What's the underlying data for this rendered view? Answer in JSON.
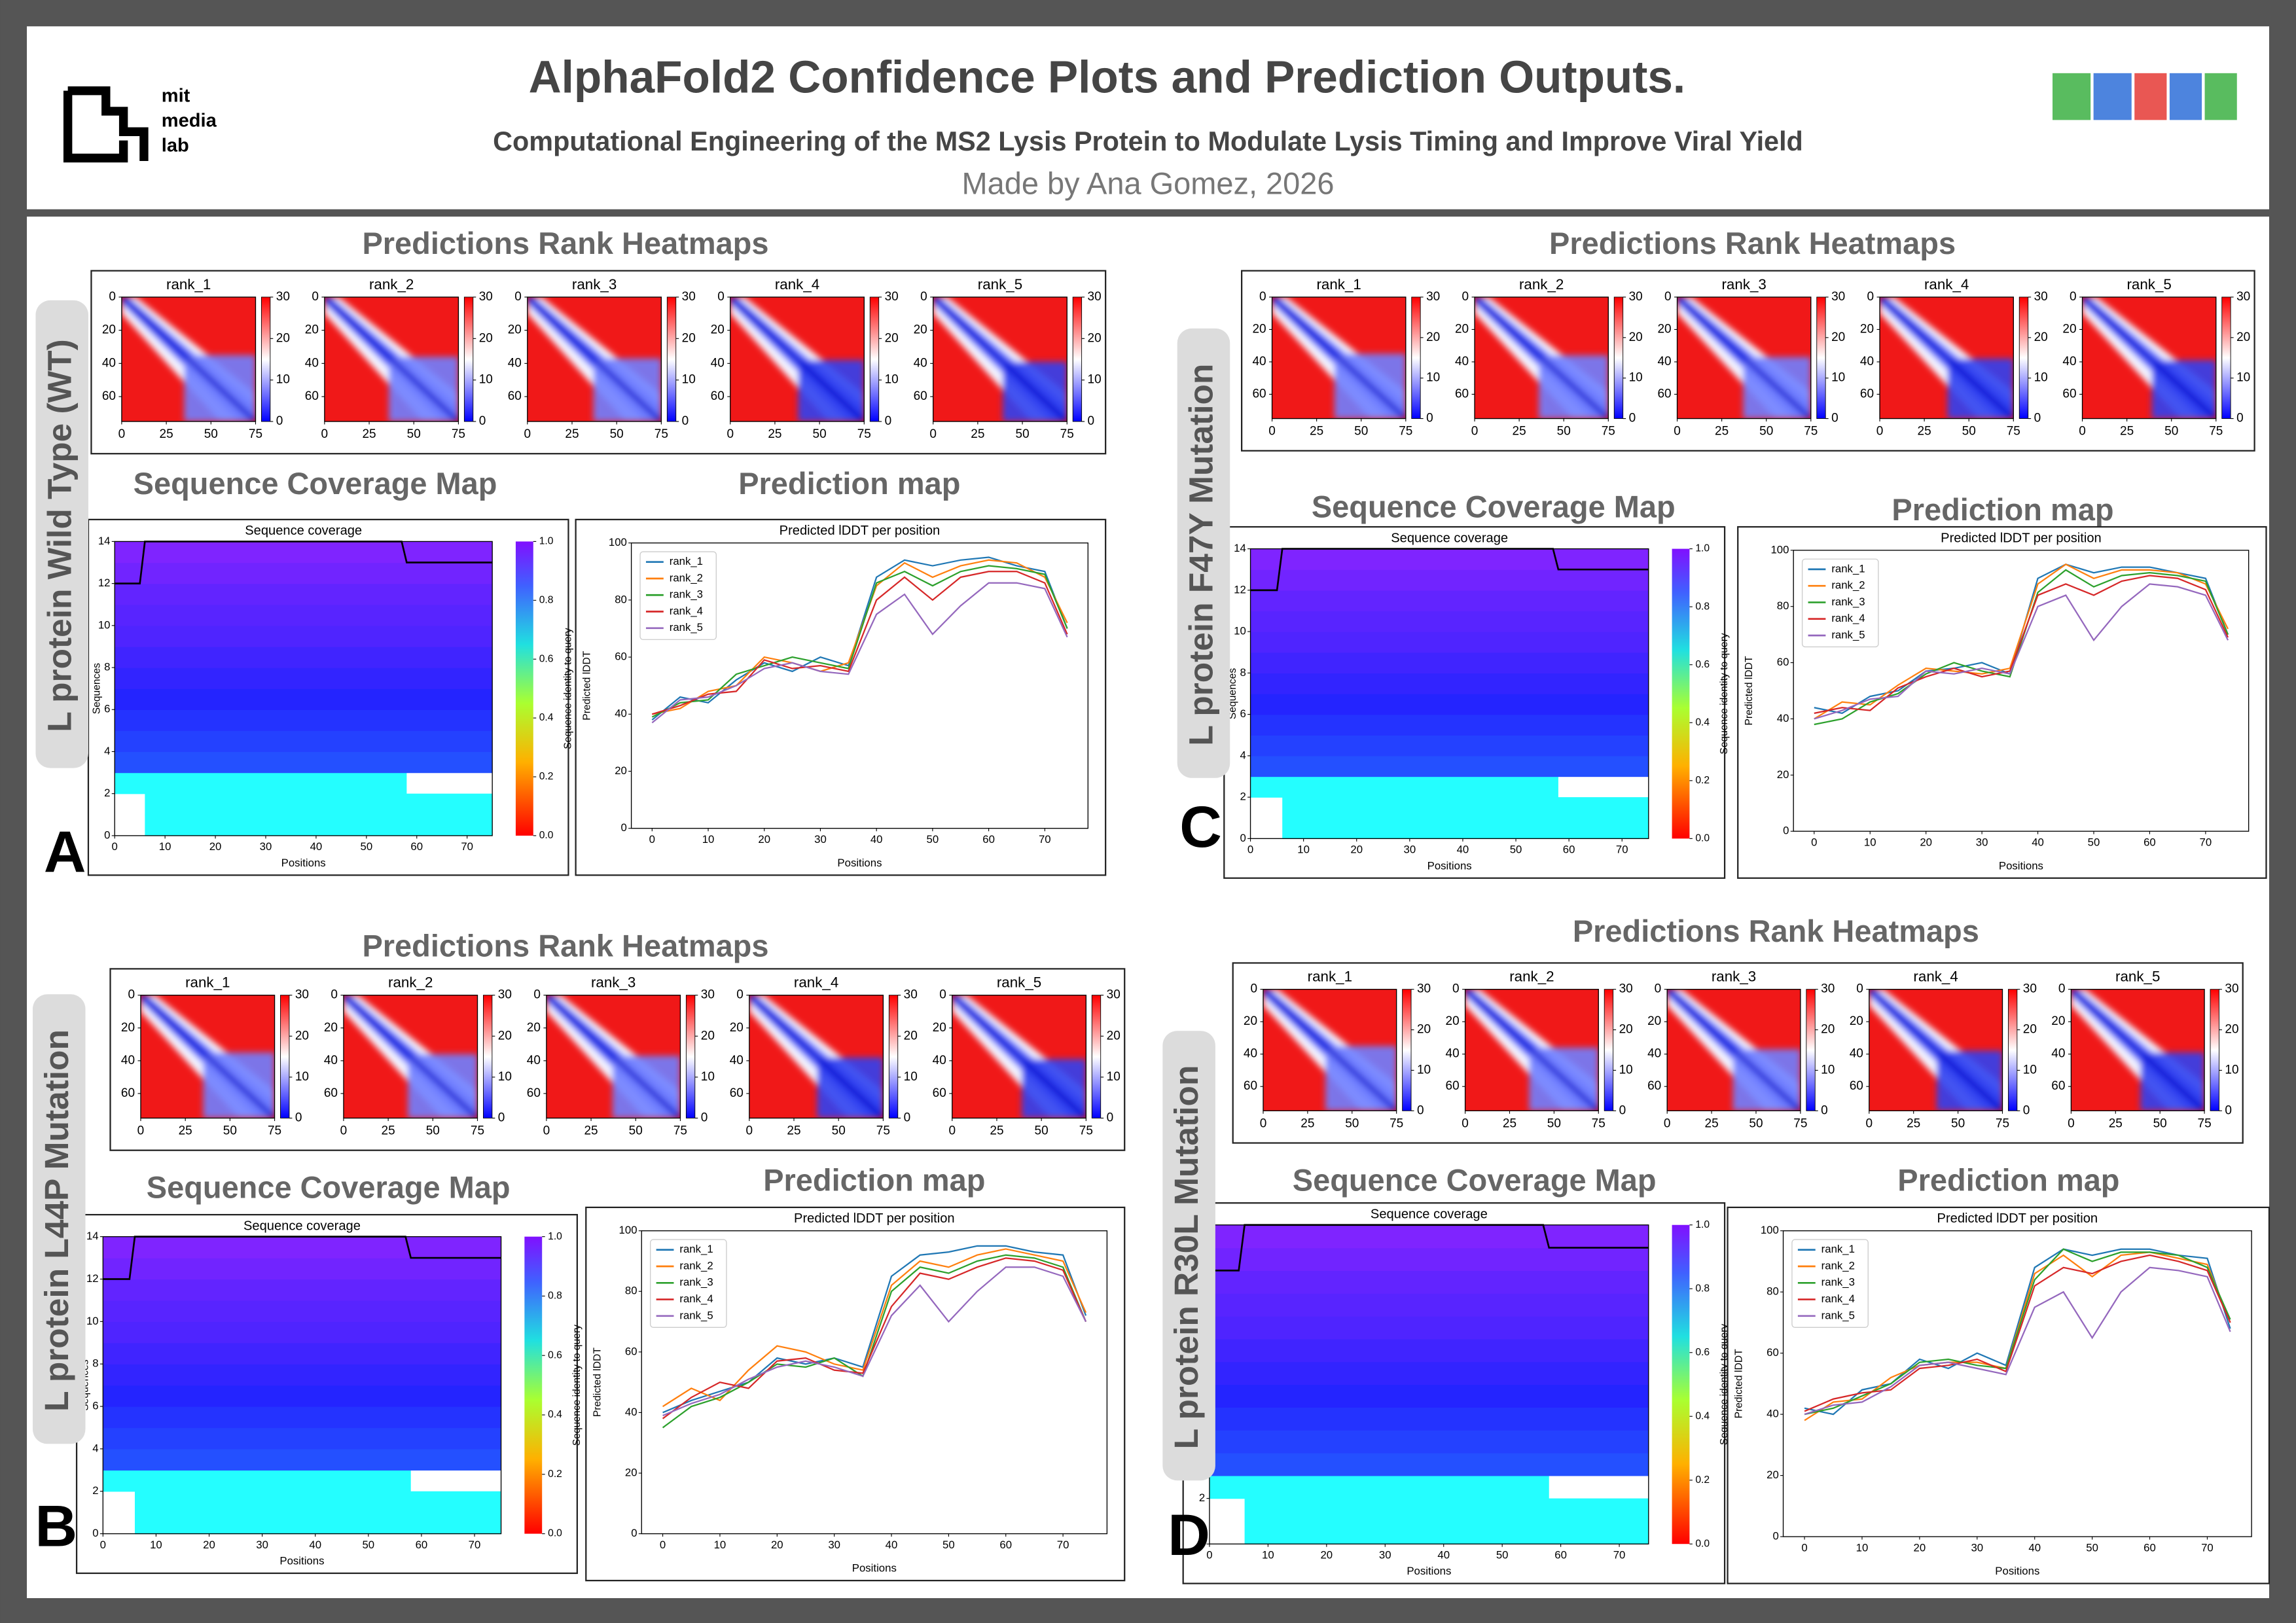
{
  "header": {
    "title": "AlphaFold2 Confidence Plots and Prediction Outputs.",
    "subtitle": "Computational Engineering of the MS2 Lysis Protein to Modulate Lysis Timing and Improve Viral Yield",
    "author": "Made by Ana Gomez, 2026",
    "logo": [
      "mit",
      "media",
      "lab"
    ]
  },
  "common": {
    "ranks": [
      "rank_1",
      "rank_2",
      "rank_3",
      "rank_4",
      "rank_5"
    ],
    "rank_colors": [
      "#1f77b4",
      "#ff7f0e",
      "#2ca02c",
      "#d62728",
      "#9467bd"
    ],
    "heatmap": {
      "xlim": [
        0,
        75
      ],
      "ylim": [
        0,
        75
      ],
      "xticks": [
        0,
        25,
        50,
        75
      ],
      "yticks": [
        0,
        20,
        40,
        60
      ],
      "clim": [
        0,
        30
      ],
      "cticks": [
        0,
        10,
        20,
        30
      ]
    },
    "coverage": {
      "title": "Sequence coverage",
      "xlabel": "Positions",
      "ylabel": "Sequences",
      "clabel": "Sequence identity to query",
      "xlim": [
        0,
        75
      ],
      "ylim": [
        0,
        14
      ],
      "xticks": [
        0,
        10,
        20,
        30,
        40,
        50,
        60,
        70
      ],
      "yticks": [
        0,
        2,
        4,
        6,
        8,
        10,
        12,
        14
      ],
      "clim": [
        0,
        1
      ],
      "cticks": [
        {
          "value": 0,
          "label": "0.0"
        },
        {
          "value": 0.2,
          "label": "0.2"
        },
        {
          "value": 0.4,
          "label": "0.4"
        },
        {
          "value": 0.6,
          "label": "0.6"
        },
        {
          "value": 0.8,
          "label": "0.8"
        },
        {
          "value": 1,
          "label": "1.0"
        }
      ],
      "rows": [
        {
          "start": 6,
          "end": 75,
          "identity": 0.68
        },
        {
          "start": 6,
          "end": 75,
          "identity": 0.68
        },
        {
          "start": 0,
          "end": 58,
          "identity": 0.68
        },
        {
          "start": 0,
          "end": 75,
          "identity": 0.86
        },
        {
          "start": 0,
          "end": 75,
          "identity": 0.875
        },
        {
          "start": 0,
          "end": 75,
          "identity": 0.89
        },
        {
          "start": 0,
          "end": 75,
          "identity": 0.905
        },
        {
          "start": 0,
          "end": 75,
          "identity": 0.92
        },
        {
          "start": 0,
          "end": 75,
          "identity": 0.935
        },
        {
          "start": 0,
          "end": 75,
          "identity": 0.95
        },
        {
          "start": 0,
          "end": 75,
          "identity": 0.96
        },
        {
          "start": 0,
          "end": 75,
          "identity": 0.97
        },
        {
          "start": 0,
          "end": 75,
          "identity": 0.985
        },
        {
          "start": 0,
          "end": 75,
          "identity": 1.0
        }
      ],
      "line": {
        "x": [
          0,
          5,
          6,
          57,
          58,
          75
        ],
        "y": [
          12,
          12,
          14,
          14,
          13,
          13
        ]
      }
    },
    "prediction": {
      "title": "Predicted lDDT per position",
      "xlabel": "Positions",
      "ylabel": "Predicted lDDT",
      "xlim": [
        -3.7,
        77.7
      ],
      "ylim": [
        0,
        100
      ],
      "xticks": [
        0,
        10,
        20,
        30,
        40,
        50,
        60,
        70
      ],
      "yticks": [
        0,
        20,
        40,
        60,
        80,
        100
      ],
      "x": [
        0,
        5,
        10,
        15,
        20,
        25,
        30,
        35,
        40,
        45,
        50,
        55,
        60,
        65,
        70,
        74
      ]
    }
  },
  "panels": [
    {
      "letter": "A",
      "label": "L protein Wild Type (WT)",
      "heatmap_title": "Predictions Rank Heatmaps",
      "coverage_title": "Sequence Coverage Map",
      "prediction_title": "Prediction map",
      "series": [
        [
          38,
          46,
          44,
          52,
          58,
          55,
          60,
          57,
          88,
          94,
          92,
          94,
          95,
          92,
          90,
          70
        ],
        [
          40,
          42,
          48,
          50,
          60,
          58,
          55,
          58,
          85,
          93,
          88,
          92,
          94,
          93,
          88,
          72
        ],
        [
          39,
          44,
          45,
          54,
          57,
          60,
          58,
          56,
          86,
          90,
          85,
          90,
          92,
          91,
          89,
          70
        ],
        [
          40,
          43,
          47,
          48,
          59,
          56,
          57,
          55,
          80,
          88,
          80,
          88,
          90,
          90,
          86,
          68
        ],
        [
          37,
          45,
          46,
          50,
          56,
          58,
          55,
          54,
          75,
          82,
          68,
          78,
          86,
          86,
          84,
          67
        ]
      ]
    },
    {
      "letter": "C",
      "label": "L protein F47Y Mutation",
      "heatmap_title": "Predictions Rank Heatmaps",
      "coverage_title": "Sequence Coverage Map",
      "prediction_title": "Prediction map",
      "series": [
        [
          44,
          42,
          48,
          50,
          57,
          58,
          60,
          56,
          90,
          95,
          92,
          94,
          94,
          92,
          90,
          70
        ],
        [
          40,
          46,
          45,
          52,
          58,
          57,
          56,
          58,
          88,
          95,
          90,
          93,
          93,
          92,
          88,
          72
        ],
        [
          38,
          40,
          46,
          49,
          56,
          60,
          57,
          55,
          85,
          93,
          87,
          91,
          92,
          91,
          89,
          70
        ],
        [
          42,
          44,
          43,
          51,
          55,
          58,
          55,
          57,
          84,
          88,
          84,
          89,
          91,
          90,
          86,
          69
        ],
        [
          40,
          43,
          47,
          48,
          57,
          56,
          58,
          56,
          80,
          84,
          68,
          80,
          88,
          87,
          84,
          68
        ]
      ]
    },
    {
      "letter": "B",
      "label": "L protein L44P Mutation",
      "heatmap_title": "Predictions Rank Heatmaps",
      "coverage_title": "Sequence Coverage Map",
      "prediction_title": "Prediction map",
      "series": [
        [
          40,
          44,
          47,
          50,
          58,
          56,
          58,
          55,
          85,
          92,
          93,
          95,
          95,
          93,
          92,
          72
        ],
        [
          42,
          48,
          44,
          54,
          62,
          60,
          56,
          54,
          82,
          90,
          88,
          92,
          94,
          92,
          90,
          73
        ],
        [
          35,
          42,
          45,
          50,
          56,
          55,
          58,
          52,
          80,
          88,
          86,
          90,
          92,
          91,
          88,
          70
        ],
        [
          38,
          45,
          50,
          48,
          57,
          58,
          54,
          53,
          75,
          86,
          84,
          88,
          91,
          90,
          87,
          70
        ],
        [
          39,
          43,
          46,
          51,
          55,
          57,
          55,
          52,
          72,
          82,
          70,
          80,
          88,
          88,
          85,
          70
        ]
      ]
    },
    {
      "letter": "D",
      "label": "L protein R30L Mutation",
      "heatmap_title": "Predictions Rank Heatmaps",
      "coverage_title": "Sequence Coverage Map",
      "prediction_title": "Prediction map",
      "series": [
        [
          42,
          40,
          48,
          50,
          58,
          55,
          60,
          56,
          88,
          94,
          92,
          94,
          94,
          92,
          91,
          68
        ],
        [
          38,
          44,
          45,
          52,
          56,
          57,
          57,
          55,
          86,
          92,
          85,
          92,
          93,
          91,
          89,
          70
        ],
        [
          40,
          42,
          46,
          50,
          57,
          58,
          56,
          55,
          84,
          94,
          90,
          93,
          93,
          92,
          88,
          71
        ],
        [
          41,
          45,
          47,
          48,
          55,
          56,
          58,
          54,
          82,
          88,
          86,
          90,
          92,
          90,
          87,
          70
        ],
        [
          40,
          43,
          44,
          49,
          56,
          57,
          55,
          53,
          75,
          80,
          65,
          80,
          88,
          87,
          85,
          67
        ]
      ]
    }
  ]
}
